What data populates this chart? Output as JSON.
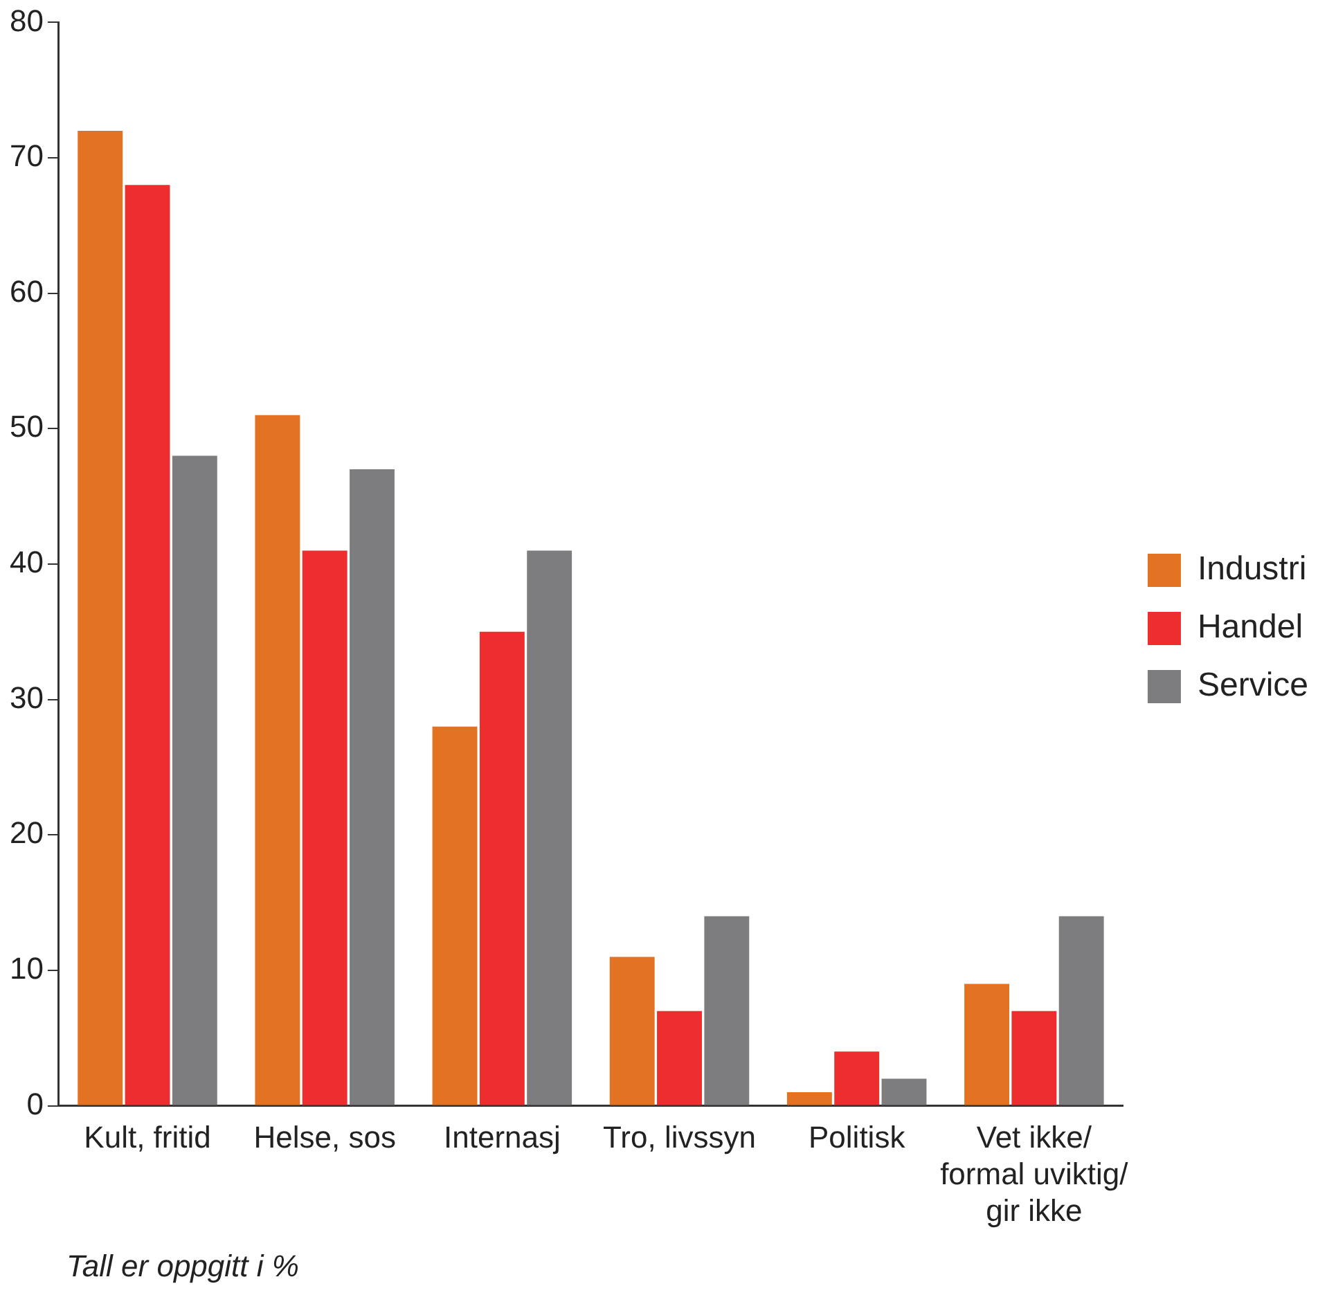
{
  "chart_data": {
    "type": "bar",
    "categories": [
      "Kult, fritid",
      "Helse, sos",
      "Internasj",
      "Tro, livssyn",
      "Politisk",
      "Vet ikke/ formal uviktig/ gir ikke"
    ],
    "series": [
      {
        "name": "Industri",
        "color": "#e37222",
        "values": [
          72,
          51,
          28,
          11,
          1,
          9
        ]
      },
      {
        "name": "Handel",
        "color": "#ee2e2e",
        "values": [
          68,
          41,
          35,
          7,
          4,
          7
        ]
      },
      {
        "name": "Service",
        "color": "#7d7d80",
        "values": [
          48,
          47,
          41,
          14,
          2,
          14
        ]
      }
    ],
    "ylim": [
      0,
      80
    ],
    "yticks": [
      0,
      10,
      20,
      30,
      40,
      50,
      60,
      70,
      80
    ],
    "grid": false,
    "legend": "right",
    "annotations": [
      "Tall er oppgitt i %"
    ]
  }
}
